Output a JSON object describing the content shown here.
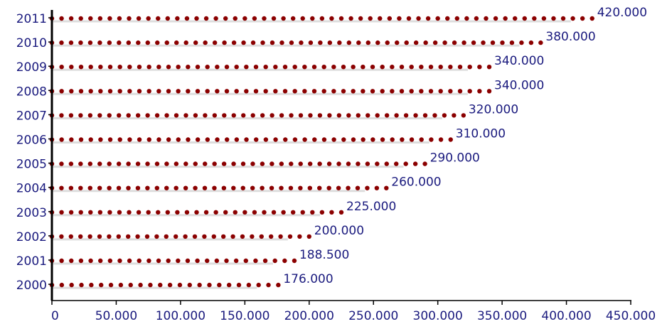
{
  "chart_data": {
    "type": "bar",
    "orientation": "horizontal",
    "style": "dotted-bars",
    "categories": [
      "2000",
      "2001",
      "2002",
      "2003",
      "2004",
      "2005",
      "2006",
      "2007",
      "2008",
      "2009",
      "2010",
      "2011"
    ],
    "values": [
      176000,
      188500,
      200000,
      225000,
      260000,
      290000,
      310000,
      320000,
      340000,
      340000,
      380000,
      420000
    ],
    "value_labels": [
      "176.000",
      "188.500",
      "200.000",
      "225.000",
      "260.000",
      "290.000",
      "310.000",
      "320.000",
      "340.000",
      "340.000",
      "380.000",
      "420.000"
    ],
    "xticks": [
      0,
      50000,
      100000,
      150000,
      200000,
      250000,
      300000,
      350000,
      400000,
      450000
    ],
    "xtick_labels": [
      "0",
      "50.000",
      "100.000",
      "150.000",
      "200.000",
      "250.000",
      "300.000",
      "350.000",
      "400.000",
      "450.000"
    ],
    "xlim": [
      0,
      450000
    ],
    "title": "",
    "xlabel": "",
    "ylabel": "",
    "grid": false,
    "legend": "none",
    "colors": {
      "dots": "#8b0000",
      "bar_shadow": "#dddddd",
      "text": "#1a1a7e",
      "axis": "#000000"
    }
  }
}
